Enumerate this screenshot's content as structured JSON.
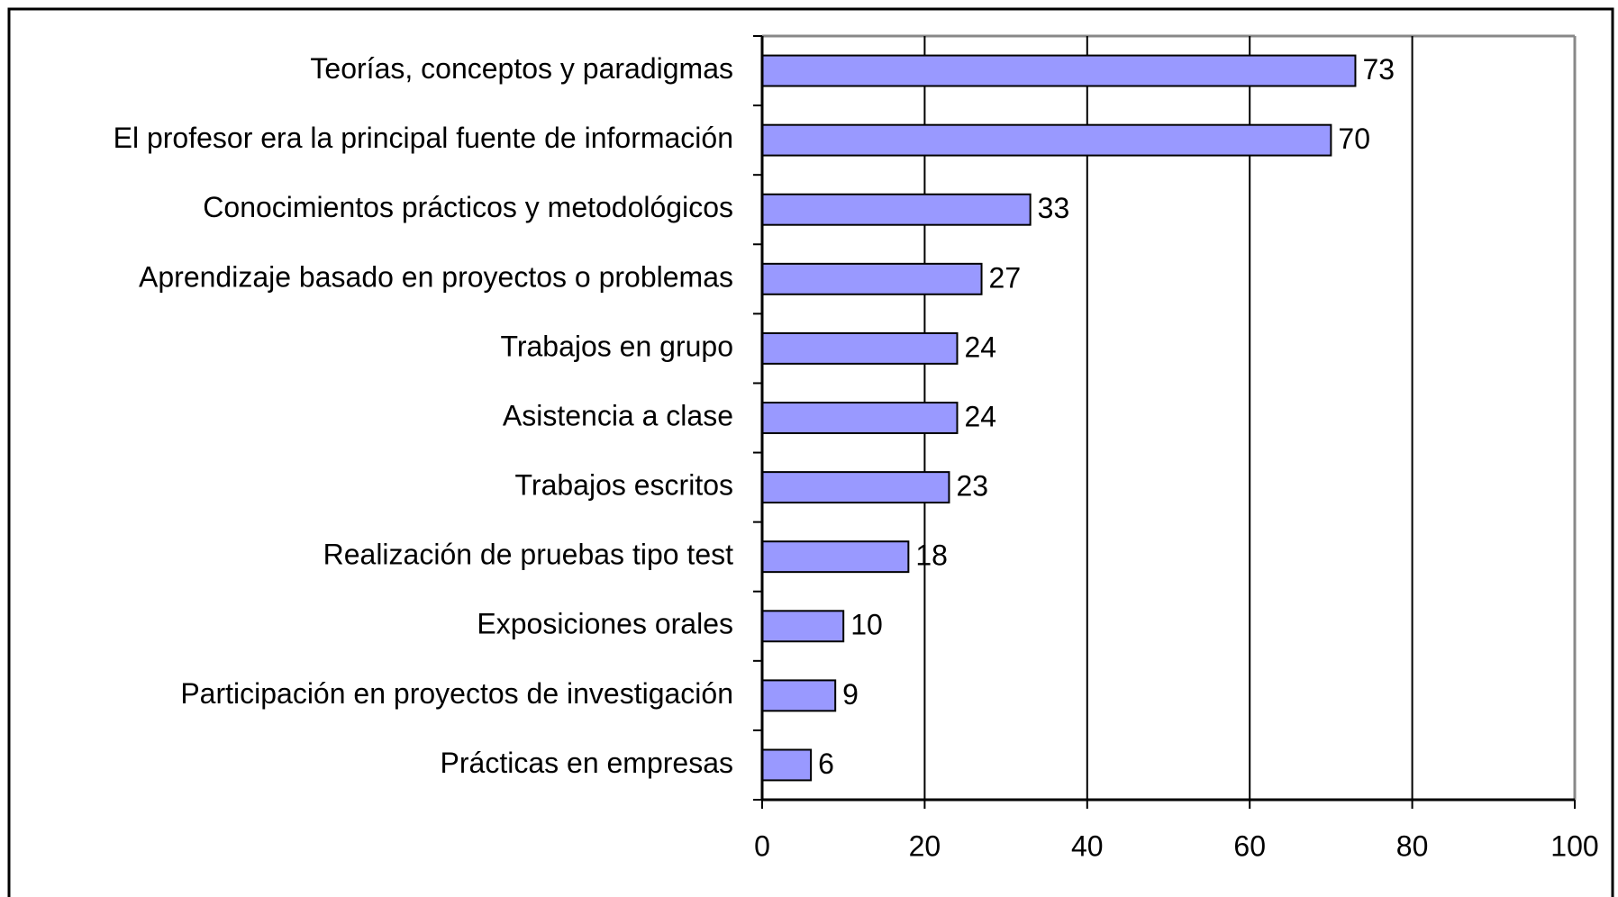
{
  "chart_data": {
    "type": "bar",
    "orientation": "horizontal",
    "categories": [
      "Teorías, conceptos y paradigmas",
      "El profesor era la principal fuente de información",
      "Conocimientos prácticos y metodológicos",
      "Aprendizaje basado en proyectos o problemas",
      "Trabajos en grupo",
      "Asistencia a clase",
      "Trabajos escritos",
      "Realización de pruebas tipo test",
      "Exposiciones orales",
      "Participación en proyectos de investigación",
      "Prácticas en empresas"
    ],
    "values": [
      73,
      70,
      33,
      27,
      24,
      24,
      23,
      18,
      10,
      9,
      6
    ],
    "color": "#9999ff",
    "xlim": [
      0,
      100
    ],
    "xticks": [
      0,
      20,
      40,
      60,
      80,
      100
    ],
    "grid": true
  }
}
